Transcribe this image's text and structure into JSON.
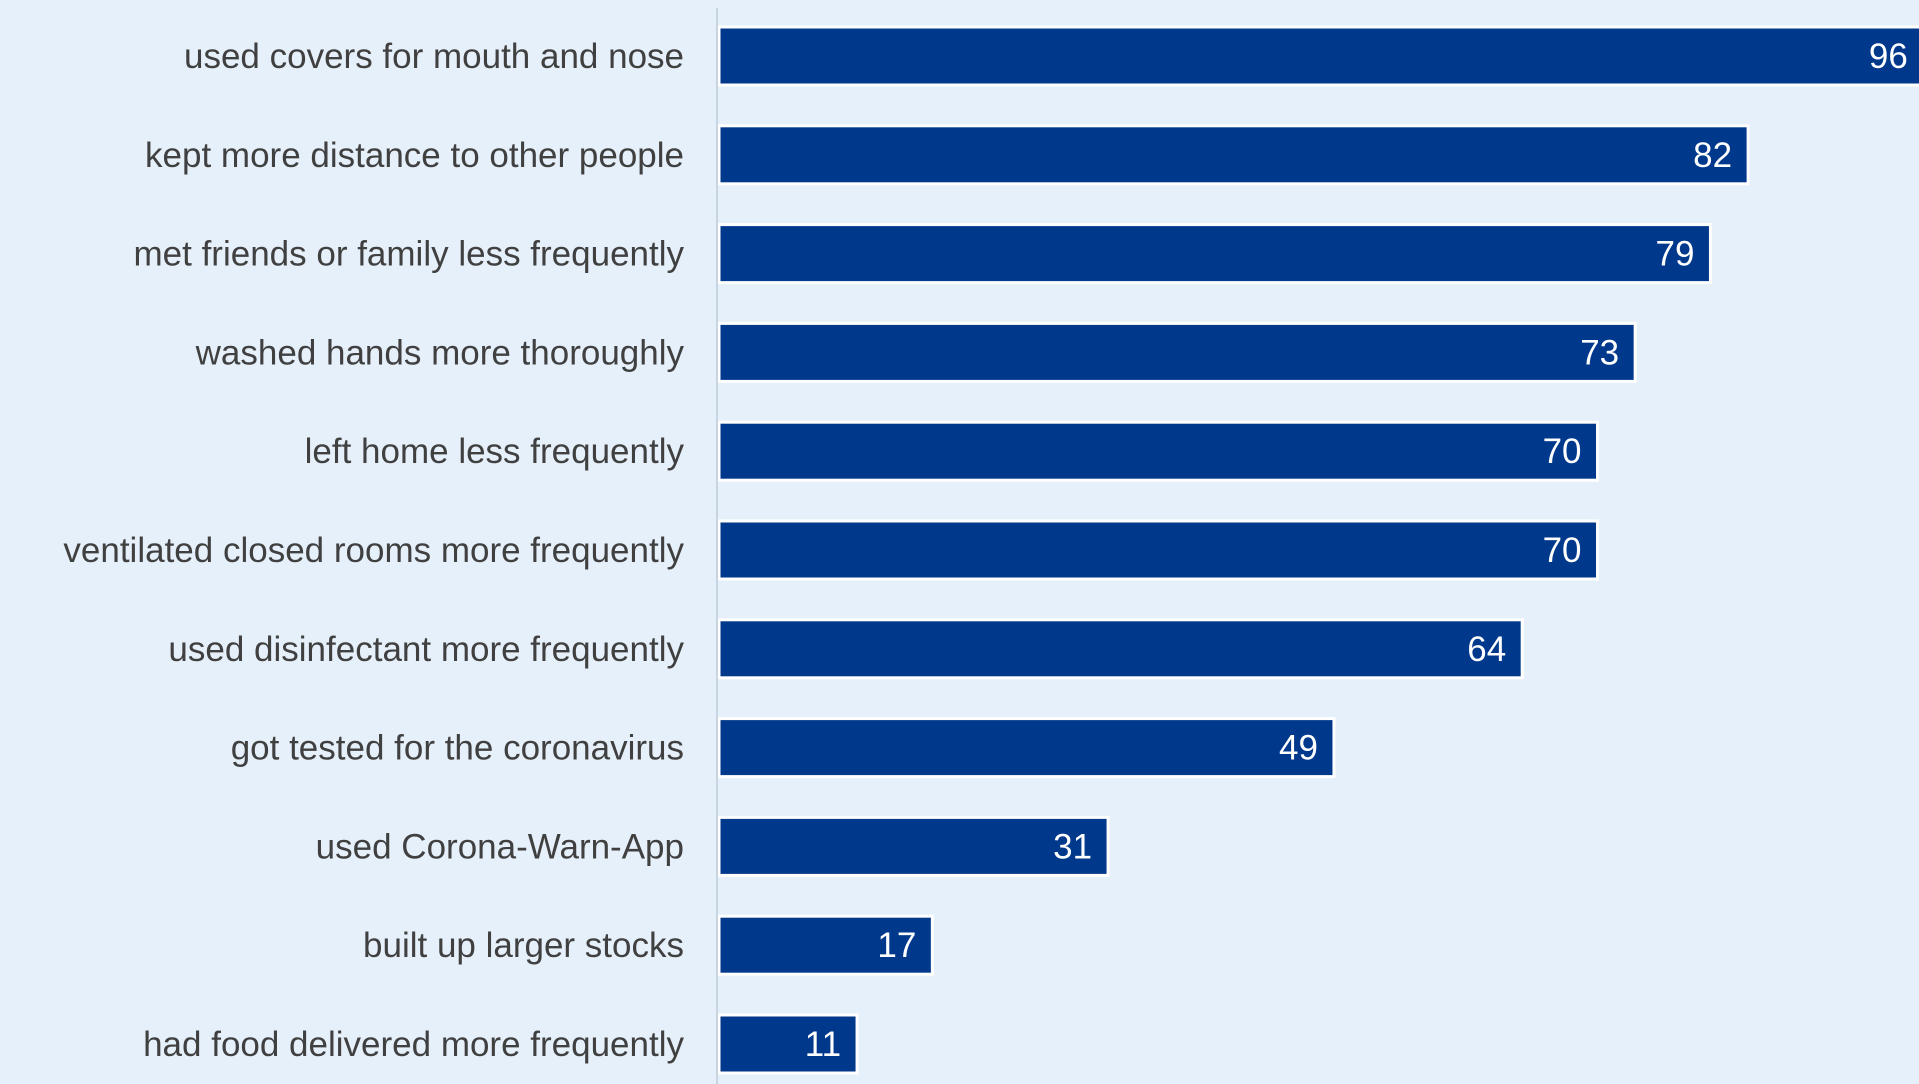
{
  "chart_data": {
    "type": "bar",
    "orientation": "horizontal",
    "categories": [
      "used covers for mouth and nose",
      "kept more distance to other people",
      "met friends or family less frequently",
      "washed hands more thoroughly",
      "left home less frequently",
      "ventilated closed rooms more frequently",
      "used disinfectant more frequently",
      "got tested for the coronavirus",
      "used Corona-Warn-App",
      "built up larger stocks",
      "had food delivered more frequently"
    ],
    "values": [
      96,
      82,
      79,
      73,
      70,
      70,
      64,
      49,
      31,
      17,
      11
    ],
    "data_labels": true,
    "title": "",
    "xlabel": "",
    "ylabel": "",
    "xlim": [
      0,
      95
    ],
    "grid": false,
    "legend": "none",
    "colors": {
      "background": "#e6f0fa",
      "bar": "#00388c",
      "bar_outline": "#ffffff",
      "category_text": "#404040",
      "value_text": "#ffffff",
      "axis_line": "#c8d4e0"
    }
  }
}
